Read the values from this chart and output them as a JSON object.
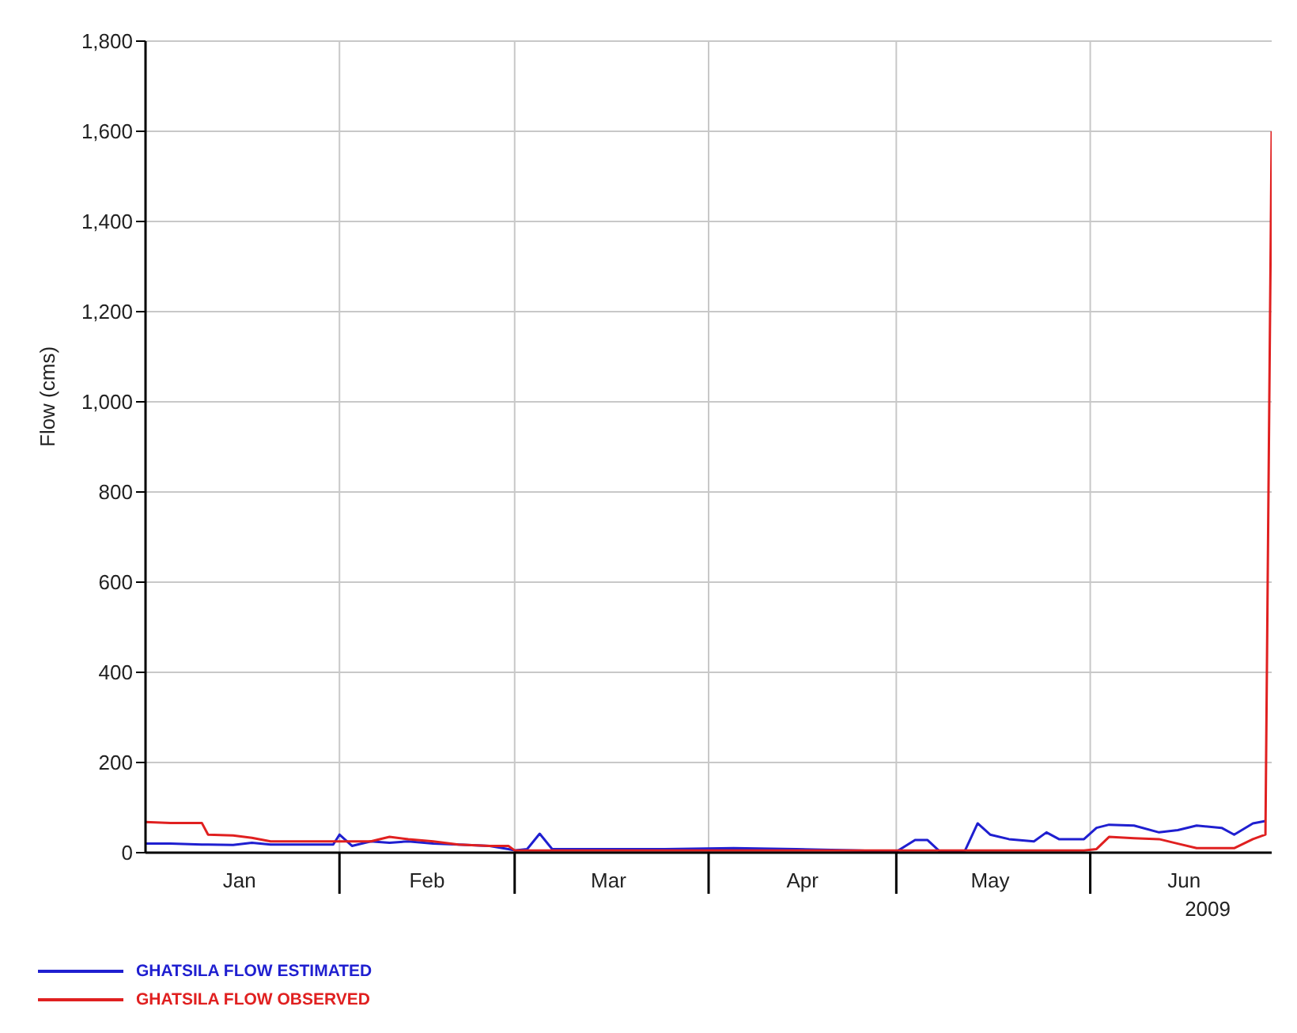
{
  "chart_data": {
    "type": "line",
    "ylabel": "Flow (cms)",
    "xlabel": "2009",
    "x": [
      "2009-01-01",
      "2009-01-05",
      "2009-01-10",
      "2009-01-11",
      "2009-01-15",
      "2009-01-18",
      "2009-01-21",
      "2009-01-26",
      "2009-01-31",
      "2009-02-01",
      "2009-02-03",
      "2009-02-06",
      "2009-02-09",
      "2009-02-12",
      "2009-02-16",
      "2009-02-20",
      "2009-02-25",
      "2009-02-28",
      "2009-03-01",
      "2009-03-03",
      "2009-03-05",
      "2009-03-07",
      "2009-03-15",
      "2009-03-25",
      "2009-04-05",
      "2009-04-15",
      "2009-04-25",
      "2009-05-01",
      "2009-05-04",
      "2009-05-06",
      "2009-05-08",
      "2009-05-12",
      "2009-05-14",
      "2009-05-16",
      "2009-05-19",
      "2009-05-23",
      "2009-05-25",
      "2009-05-27",
      "2009-05-31",
      "2009-06-02",
      "2009-06-04",
      "2009-06-08",
      "2009-06-12",
      "2009-06-15",
      "2009-06-18",
      "2009-06-22",
      "2009-06-24",
      "2009-06-27",
      "2009-06-29",
      "2009-06-30"
    ],
    "series": [
      {
        "name": "GHATSILA FLOW ESTIMATED",
        "color": "#1f1fd0",
        "values": [
          20,
          20,
          18,
          18,
          17,
          22,
          18,
          18,
          18,
          40,
          15,
          25,
          22,
          25,
          20,
          18,
          15,
          8,
          5,
          8,
          42,
          8,
          8,
          8,
          10,
          8,
          5,
          2,
          28,
          28,
          2,
          5,
          65,
          40,
          30,
          25,
          45,
          30,
          30,
          55,
          62,
          60,
          45,
          50,
          60,
          55,
          40,
          65,
          70,
          null
        ]
      },
      {
        "name": "GHATSILA FLOW OBSERVED",
        "color": "#e02020",
        "values": [
          68,
          66,
          66,
          40,
          38,
          33,
          25,
          25,
          25,
          25,
          25,
          25,
          35,
          30,
          25,
          18,
          15,
          15,
          5,
          5,
          5,
          5,
          5,
          5,
          5,
          5,
          5,
          5,
          5,
          5,
          5,
          5,
          5,
          5,
          5,
          5,
          5,
          5,
          5,
          8,
          35,
          32,
          30,
          20,
          10,
          10,
          10,
          30,
          40,
          1600
        ]
      }
    ],
    "xlim": [
      "2009-01-01",
      "2009-06-30"
    ],
    "xticks": [
      {
        "value": "2009-01-16",
        "label": "Jan"
      },
      {
        "value": "2009-02-01",
        "label": null
      },
      {
        "value": "2009-02-15",
        "label": "Feb"
      },
      {
        "value": "2009-03-01",
        "label": null
      },
      {
        "value": "2009-03-16",
        "label": "Mar"
      },
      {
        "value": "2009-04-01",
        "label": null
      },
      {
        "value": "2009-04-16",
        "label": "Apr"
      },
      {
        "value": "2009-05-01",
        "label": null
      },
      {
        "value": "2009-05-16",
        "label": "May"
      },
      {
        "value": "2009-06-01",
        "label": null
      },
      {
        "value": "2009-06-16",
        "label": "Jun"
      }
    ],
    "ylim": [
      0,
      1800
    ],
    "yticks": [
      {
        "value": 0,
        "label": "0"
      },
      {
        "value": 200,
        "label": "200"
      },
      {
        "value": 400,
        "label": "400"
      },
      {
        "value": 600,
        "label": "600"
      },
      {
        "value": 800,
        "label": "800"
      },
      {
        "value": 1000,
        "label": "1,000"
      },
      {
        "value": 1200,
        "label": "1,200"
      },
      {
        "value": 1400,
        "label": "1,400"
      },
      {
        "value": 1600,
        "label": "1,600"
      },
      {
        "value": 1800,
        "label": "1,800"
      }
    ],
    "grid": true,
    "legend": "bottom left",
    "marker": "none",
    "line_style": "solid"
  }
}
